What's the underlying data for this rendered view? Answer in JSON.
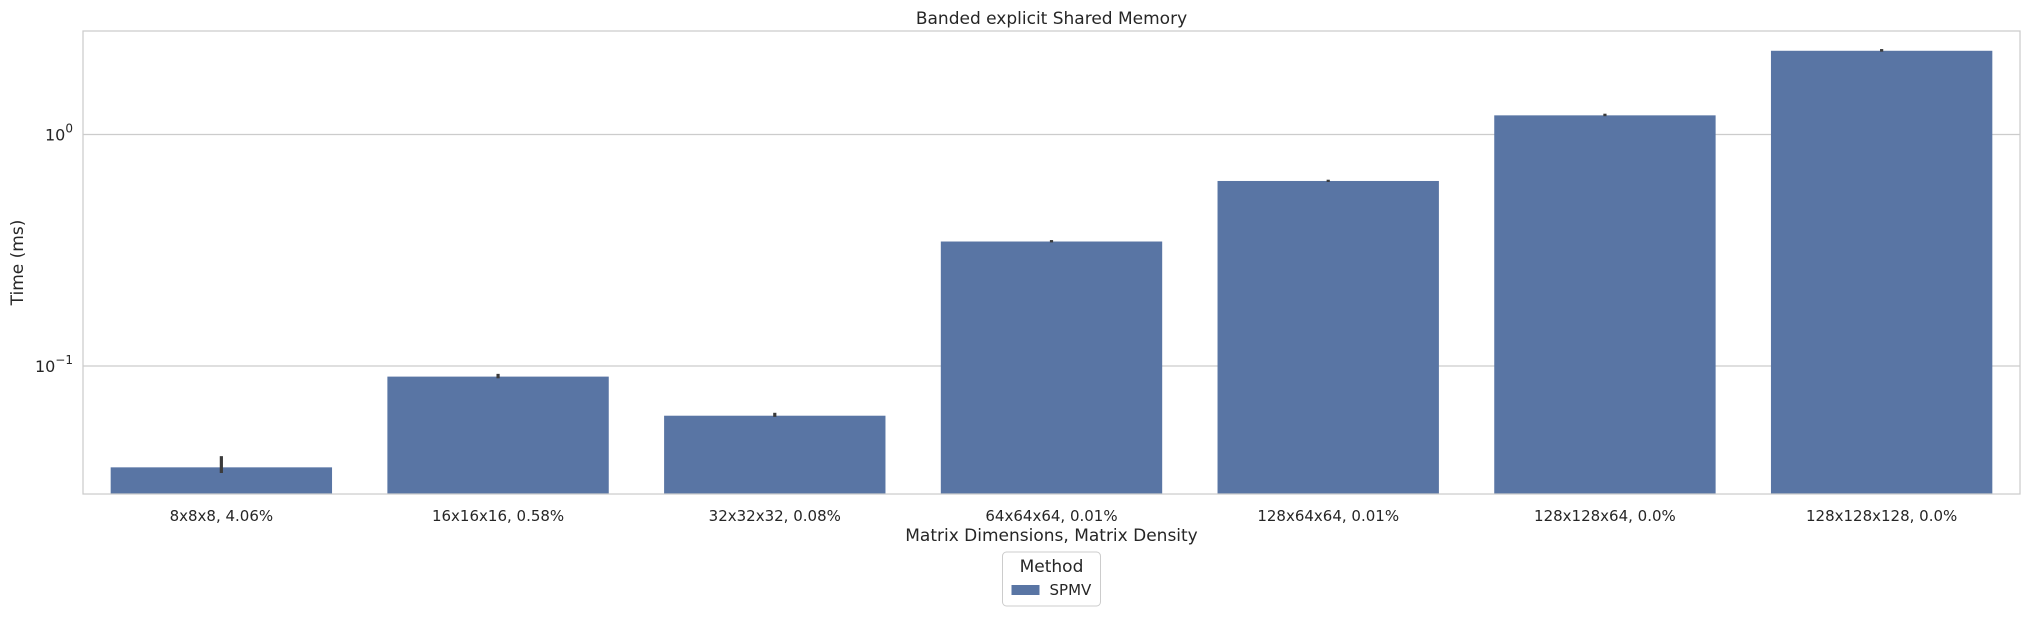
{
  "chart_data": {
    "type": "bar",
    "title": "Banded explicit Shared Memory",
    "xlabel": "Matrix Dimensions, Matrix Density",
    "ylabel": "Time (ms)",
    "yscale": "log",
    "ylim": [
      0.028,
      2.8
    ],
    "yticks": [
      {
        "value": 1.0,
        "base": "10",
        "exp": "0"
      },
      {
        "value": 0.1,
        "base": "10",
        "exp": "−1"
      }
    ],
    "grid": "horizontal",
    "categories": [
      "8x8x8, 4.06%",
      "16x16x16, 0.58%",
      "32x32x32, 0.08%",
      "64x64x64, 0.01%",
      "128x64x64, 0.01%",
      "128x128x64, 0.0%",
      "128x128x128, 0.0%"
    ],
    "series": [
      {
        "name": "SPMV",
        "color": "#5975a4",
        "values": [
          0.0365,
          0.09,
          0.061,
          0.345,
          0.63,
          1.21,
          2.3
        ],
        "error_low": [
          0.0345,
          0.0885,
          0.0603,
          0.342,
          0.624,
          1.2,
          2.28
        ],
        "error_high": [
          0.0408,
          0.0925,
          0.0628,
          0.35,
          0.638,
          1.23,
          2.34
        ]
      }
    ],
    "legend": {
      "title": "Method",
      "placement": "bottom-center, below chart"
    }
  }
}
